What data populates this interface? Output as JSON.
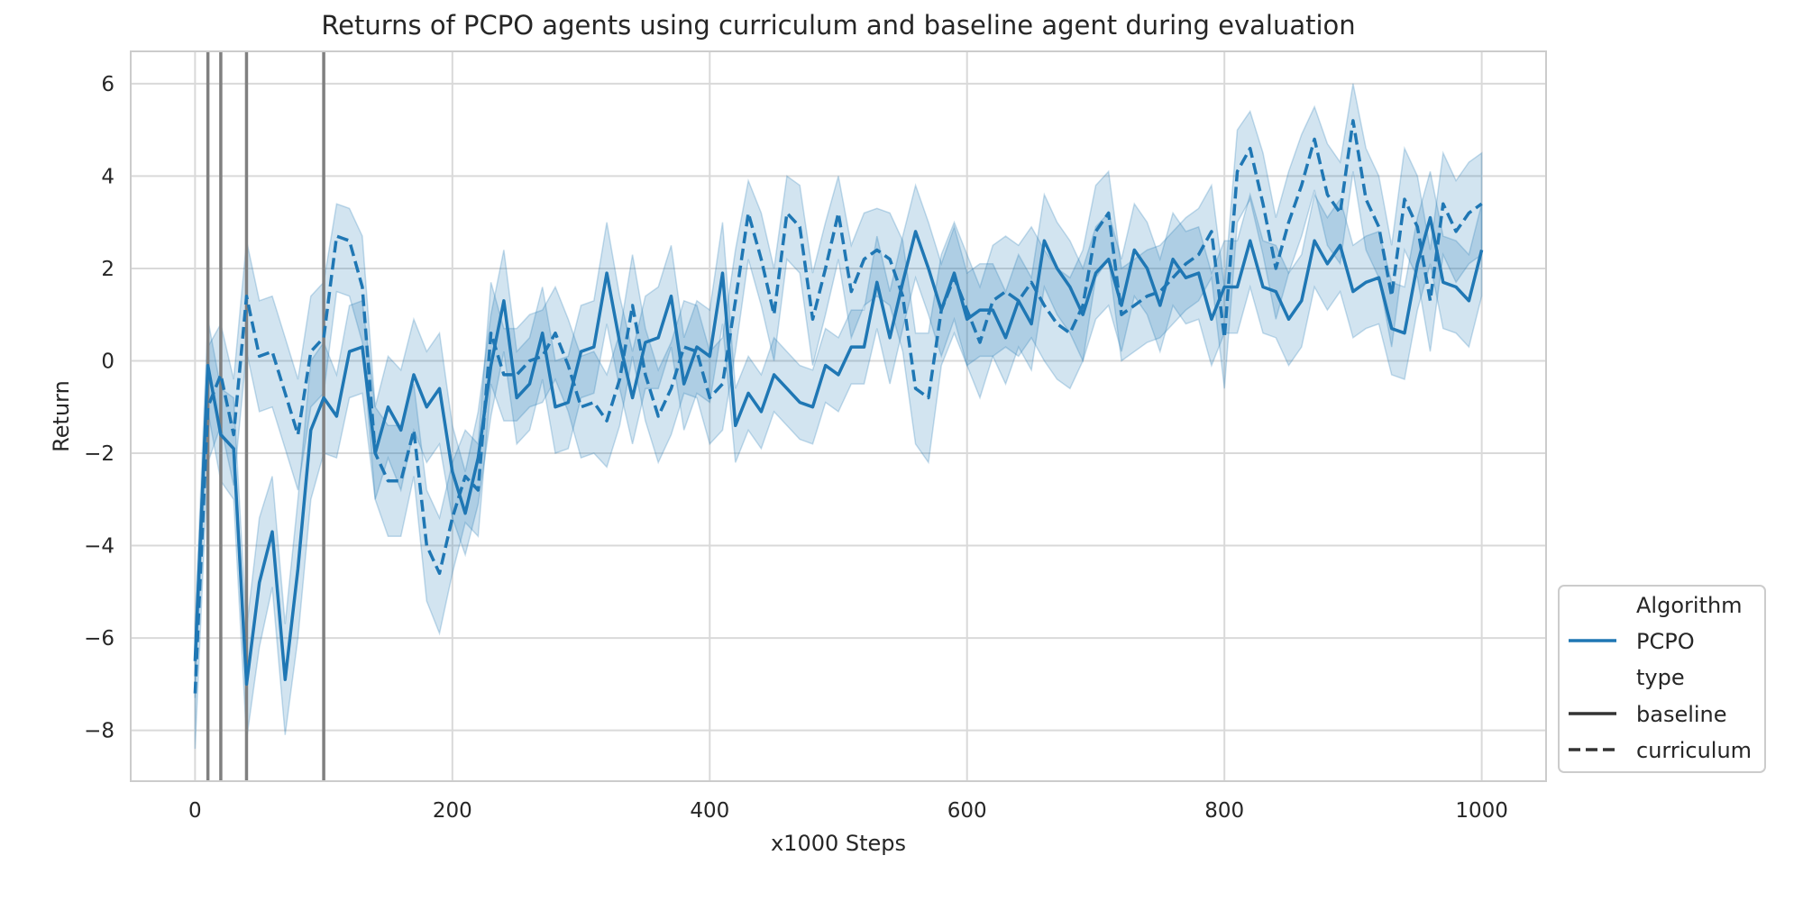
{
  "chart_data": {
    "type": "line",
    "title": "Returns of PCPO agents using curriculum and baseline agent during evaluation",
    "xlabel": "x1000 Steps",
    "ylabel": "Return",
    "xlim": [
      -50,
      1050
    ],
    "ylim": [
      -9.1,
      6.7
    ],
    "x_ticks": [
      0,
      200,
      400,
      600,
      800,
      1000
    ],
    "y_ticks": [
      -8,
      -6,
      -4,
      -2,
      0,
      2,
      4,
      6
    ],
    "x_tick_labels": [
      "0",
      "200",
      "400",
      "600",
      "800",
      "1000"
    ],
    "y_tick_labels": [
      "−8",
      "−6",
      "−4",
      "−2",
      "0",
      "2",
      "4",
      "6"
    ],
    "grid": true,
    "color": "#1f77b4",
    "vertical_lines": [
      10,
      20,
      40,
      100
    ],
    "vertical_line_color": "#808080",
    "legend": {
      "placement": "lower-right outside",
      "hue_title": "Algorithm",
      "hue_entries": [
        "PCPO"
      ],
      "style_title": "type",
      "style_entries": [
        "baseline",
        "curriculum"
      ]
    },
    "x": [
      0,
      10,
      20,
      30,
      40,
      50,
      60,
      70,
      80,
      90,
      100,
      110,
      120,
      130,
      140,
      150,
      160,
      170,
      180,
      190,
      200,
      210,
      220,
      230,
      240,
      250,
      260,
      270,
      280,
      290,
      300,
      310,
      320,
      330,
      340,
      350,
      360,
      370,
      380,
      390,
      400,
      410,
      420,
      430,
      440,
      450,
      460,
      470,
      480,
      490,
      500,
      510,
      520,
      530,
      540,
      550,
      560,
      570,
      580,
      590,
      600,
      610,
      620,
      630,
      640,
      650,
      660,
      670,
      680,
      690,
      700,
      710,
      720,
      730,
      740,
      750,
      760,
      770,
      780,
      790,
      800,
      810,
      820,
      830,
      840,
      850,
      860,
      870,
      880,
      890,
      900,
      910,
      920,
      930,
      940,
      950,
      960,
      970,
      980,
      990,
      1000
    ],
    "series": [
      {
        "name": "baseline",
        "line_style": "solid",
        "values": [
          -6.5,
          -0.1,
          -1.6,
          -1.9,
          -7.0,
          -4.8,
          -3.7,
          -6.9,
          -4.5,
          -1.5,
          -0.8,
          -1.2,
          0.2,
          0.3,
          -2.0,
          -1.0,
          -1.5,
          -0.3,
          -1.0,
          -0.6,
          -2.4,
          -3.3,
          -2.1,
          -0.1,
          1.3,
          -0.8,
          -0.5,
          0.6,
          -1.0,
          -0.9,
          0.2,
          0.3,
          1.9,
          0.4,
          -0.8,
          0.4,
          0.5,
          1.4,
          -0.5,
          0.3,
          0.1,
          1.9,
          -1.4,
          -0.7,
          -1.1,
          -0.3,
          -0.6,
          -0.9,
          -1.0,
          -0.1,
          -0.3,
          0.3,
          0.3,
          1.7,
          0.5,
          1.7,
          2.8,
          2.0,
          1.1,
          1.9,
          0.9,
          1.1,
          1.1,
          0.5,
          1.3,
          0.8,
          2.6,
          2.0,
          1.6,
          1.0,
          1.9,
          2.2,
          1.2,
          2.4,
          2.0,
          1.2,
          2.2,
          1.8,
          1.9,
          0.9,
          1.6,
          1.6,
          2.6,
          1.6,
          1.5,
          0.9,
          1.3,
          2.6,
          2.1,
          2.5,
          1.5,
          1.7,
          1.8,
          0.7,
          0.6,
          2.1,
          3.1,
          1.7,
          1.6,
          1.3,
          2.4
        ],
        "lower": [
          -7.3,
          -1.1,
          -2.6,
          -3.0,
          -8.2,
          -6.2,
          -4.9,
          -8.1,
          -6.0,
          -3.0,
          -2.0,
          -2.1,
          -0.8,
          -0.7,
          -3.0,
          -2.1,
          -2.8,
          -1.5,
          -2.2,
          -1.8,
          -3.4,
          -4.2,
          -3.1,
          -1.2,
          0.2,
          -1.8,
          -1.5,
          -0.4,
          -2.0,
          -1.9,
          -0.8,
          -0.7,
          0.8,
          -0.6,
          -1.8,
          -0.6,
          -0.6,
          0.3,
          -1.5,
          -0.7,
          -0.9,
          0.8,
          -2.2,
          -1.5,
          -1.9,
          -1.1,
          -1.4,
          -1.7,
          -1.8,
          -0.9,
          -1.1,
          -0.5,
          -0.5,
          0.7,
          -0.5,
          0.7,
          1.8,
          1.0,
          0.1,
          0.9,
          -0.1,
          0.1,
          0.1,
          -0.5,
          0.3,
          -0.2,
          1.6,
          1.0,
          0.6,
          0.0,
          0.9,
          1.2,
          0.2,
          1.4,
          1.0,
          0.2,
          1.2,
          0.8,
          0.9,
          -0.1,
          0.6,
          0.6,
          1.6,
          0.6,
          0.5,
          -0.1,
          0.3,
          1.6,
          1.1,
          1.5,
          0.5,
          0.7,
          0.8,
          -0.3,
          -0.4,
          1.1,
          2.1,
          0.7,
          0.6,
          0.3,
          1.4
        ],
        "upper": [
          -5.7,
          0.9,
          -0.6,
          -0.8,
          -5.8,
          -3.4,
          -2.5,
          -5.7,
          -3.0,
          0.0,
          0.4,
          -0.3,
          1.2,
          1.3,
          -1.0,
          0.1,
          -0.2,
          0.9,
          0.2,
          0.6,
          -1.4,
          -2.4,
          -1.1,
          1.0,
          2.4,
          0.2,
          0.5,
          1.6,
          0.0,
          0.1,
          1.2,
          1.3,
          3.0,
          1.4,
          0.2,
          1.4,
          1.6,
          2.5,
          0.5,
          1.3,
          1.1,
          3.0,
          -0.6,
          0.1,
          -0.3,
          0.5,
          0.2,
          -0.1,
          -0.2,
          0.7,
          0.5,
          1.1,
          1.1,
          2.7,
          1.5,
          2.7,
          3.8,
          3.0,
          2.1,
          2.9,
          1.9,
          2.1,
          2.1,
          1.5,
          2.3,
          1.8,
          3.6,
          3.0,
          2.6,
          2.0,
          2.9,
          3.2,
          2.2,
          3.4,
          3.0,
          2.2,
          3.2,
          2.8,
          2.9,
          1.9,
          2.6,
          2.6,
          3.6,
          2.6,
          2.5,
          1.9,
          2.3,
          3.6,
          3.1,
          3.5,
          2.5,
          2.7,
          2.8,
          1.7,
          1.6,
          3.1,
          4.1,
          2.7,
          2.6,
          2.3,
          3.4
        ]
      },
      {
        "name": "curriculum",
        "line_style": "dashed",
        "values": [
          -7.2,
          -1.0,
          -0.3,
          -1.6,
          1.4,
          0.1,
          0.2,
          -0.7,
          -1.6,
          0.2,
          0.5,
          2.7,
          2.6,
          1.6,
          -2.0,
          -2.6,
          -2.6,
          -1.5,
          -4.0,
          -4.6,
          -3.4,
          -2.5,
          -2.8,
          0.6,
          -0.3,
          -0.3,
          0.0,
          0.1,
          0.6,
          -0.1,
          -1.0,
          -0.9,
          -1.3,
          -0.4,
          1.2,
          -0.3,
          -1.2,
          -0.6,
          0.3,
          0.2,
          -0.8,
          -0.5,
          1.3,
          3.2,
          2.2,
          1.0,
          3.2,
          2.9,
          0.9,
          2.0,
          3.2,
          1.5,
          2.2,
          2.4,
          2.2,
          1.4,
          -0.6,
          -0.8,
          1.1,
          1.8,
          1.1,
          0.4,
          1.3,
          1.5,
          1.3,
          1.7,
          1.2,
          0.8,
          0.6,
          1.2,
          2.8,
          3.2,
          1.0,
          1.2,
          1.4,
          1.5,
          1.8,
          2.1,
          2.3,
          2.8,
          0.5,
          4.1,
          4.6,
          3.4,
          2.0,
          3.0,
          3.8,
          4.8,
          3.6,
          3.2,
          5.2,
          3.5,
          2.9,
          1.4,
          3.5,
          2.9,
          1.3,
          3.4,
          2.8,
          3.2,
          3.4
        ],
        "lower": [
          -8.4,
          -2.2,
          -1.4,
          -2.7,
          0.2,
          -1.1,
          -1.0,
          -1.9,
          -2.8,
          -1.0,
          -0.7,
          1.5,
          1.4,
          0.4,
          -3.0,
          -3.8,
          -3.8,
          -2.5,
          -5.2,
          -5.9,
          -4.6,
          -3.5,
          -3.8,
          -0.5,
          -1.3,
          -1.3,
          -1.0,
          -0.9,
          -0.4,
          -1.1,
          -2.1,
          -2.0,
          -2.3,
          -1.4,
          0.1,
          -1.3,
          -2.2,
          -1.6,
          -0.7,
          -0.8,
          -1.8,
          -1.5,
          0.2,
          2.2,
          1.2,
          0.0,
          2.2,
          1.9,
          -0.1,
          1.0,
          2.2,
          0.5,
          1.2,
          1.4,
          1.2,
          0.2,
          -1.8,
          -2.2,
          -0.1,
          0.6,
          -0.1,
          -0.8,
          0.1,
          0.3,
          0.1,
          0.5,
          0.0,
          -0.4,
          -0.6,
          0.0,
          1.8,
          2.2,
          0.0,
          0.2,
          0.4,
          0.5,
          0.8,
          1.1,
          1.3,
          1.8,
          -0.6,
          3.0,
          3.5,
          2.3,
          0.9,
          1.9,
          2.7,
          3.7,
          2.5,
          2.1,
          4.1,
          2.4,
          1.8,
          0.3,
          2.4,
          1.8,
          0.2,
          2.3,
          1.7,
          2.1,
          2.3
        ],
        "upper": [
          -6.0,
          0.3,
          0.8,
          -0.4,
          2.6,
          1.3,
          1.4,
          0.5,
          -0.4,
          1.4,
          1.7,
          3.4,
          3.3,
          2.7,
          -1.0,
          -1.4,
          -1.4,
          -0.5,
          -2.8,
          -3.4,
          -2.2,
          -1.5,
          -1.8,
          1.7,
          0.7,
          0.7,
          1.0,
          1.1,
          1.6,
          0.9,
          0.1,
          0.2,
          -0.3,
          0.6,
          2.3,
          0.7,
          -0.2,
          0.4,
          1.3,
          1.2,
          0.2,
          0.5,
          2.4,
          3.9,
          3.2,
          2.0,
          4.0,
          3.8,
          1.9,
          3.0,
          4.0,
          2.5,
          3.2,
          3.3,
          3.2,
          2.6,
          0.6,
          0.6,
          2.3,
          3.0,
          2.3,
          1.6,
          2.5,
          2.7,
          2.5,
          2.9,
          2.4,
          2.0,
          1.8,
          2.4,
          3.8,
          4.1,
          2.0,
          2.2,
          2.4,
          2.5,
          2.8,
          3.1,
          3.3,
          3.8,
          1.6,
          5.0,
          5.4,
          4.5,
          3.1,
          4.1,
          4.9,
          5.5,
          4.7,
          4.3,
          6.0,
          4.6,
          4.0,
          2.5,
          4.6,
          4.0,
          2.4,
          4.5,
          3.9,
          4.3,
          4.5
        ]
      }
    ]
  }
}
